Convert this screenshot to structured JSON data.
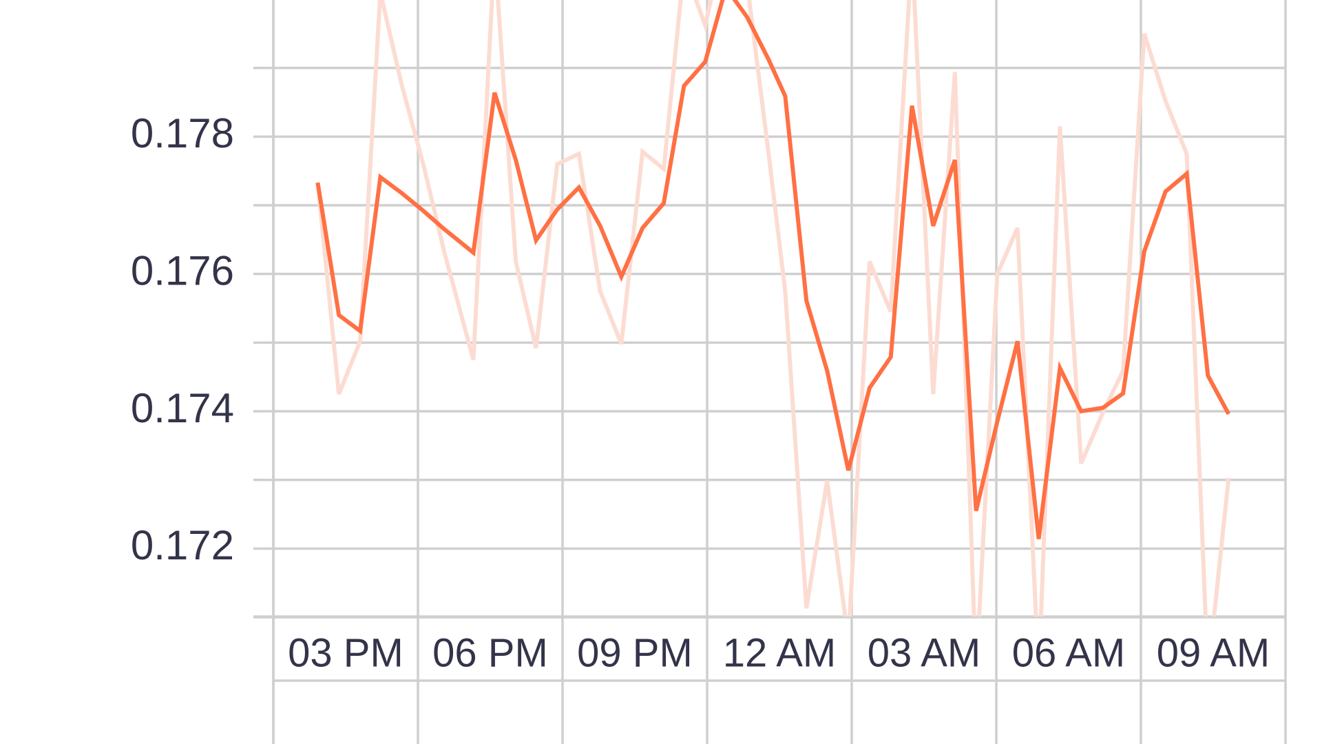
{
  "chart_data": {
    "type": "line",
    "x": [
      15.92,
      16.36,
      16.8,
      17.22,
      17.66,
      18.11,
      18.55,
      19.15,
      19.59,
      20.03,
      20.45,
      20.89,
      21.34,
      21.78,
      22.22,
      22.66,
      23.1,
      23.52,
      23.96,
      24.39,
      24.83,
      25.27,
      25.62,
      26.06,
      26.49,
      26.93,
      27.37,
      27.81,
      28.25,
      28.69,
      29.14,
      29.58,
      30.02,
      30.44,
      30.88,
      31.32,
      31.76,
      32.21,
      32.63,
      33.07,
      33.51,
      33.95,
      34.39,
      34.82
    ],
    "series": [
      {
        "color": "#fcdcd2",
        "values": [
          0.17733,
          0.17425,
          0.17502,
          0.1801,
          0.17876,
          0.1776,
          0.17631,
          0.17475,
          0.18072,
          0.17618,
          0.17492,
          0.1776,
          0.17775,
          0.17575,
          0.17498,
          0.17778,
          0.17753,
          0.18048,
          0.17962,
          0.18097,
          0.18023,
          0.17778,
          0.17575,
          0.17113,
          0.17299,
          0.17066,
          0.17618,
          0.17545,
          0.18072,
          0.17425,
          0.17894,
          0.17017,
          0.176,
          0.17667,
          0.17017,
          0.17815,
          0.17324,
          0.17398,
          0.17459,
          0.1795,
          0.17852,
          0.17775,
          0.17017,
          0.17303
        ]
      },
      {
        "color": "#ff7043",
        "values": [
          0.17733,
          0.1754,
          0.17517,
          0.17741,
          0.17718,
          0.17692,
          0.17665,
          0.17631,
          0.17864,
          0.17766,
          0.17649,
          0.17694,
          0.17726,
          0.1767,
          0.17596,
          0.17667,
          0.17703,
          0.17874,
          0.17909,
          0.18017,
          0.17974,
          0.17913,
          0.17859,
          0.17561,
          0.17459,
          0.17314,
          0.17434,
          0.17479,
          0.17845,
          0.1767,
          0.17766,
          0.17255,
          0.17385,
          0.17502,
          0.17214,
          0.17463,
          0.174,
          0.17405,
          0.17426,
          0.17633,
          0.1772,
          0.17746,
          0.17452,
          0.17396
        ]
      }
    ],
    "xlim": [
      15,
      36
    ],
    "xticks": [
      {
        "value": 15,
        "label": "03 PM"
      },
      {
        "value": 18,
        "label": "06 PM"
      },
      {
        "value": 21,
        "label": "09 PM"
      },
      {
        "value": 24,
        "label": "12 AM"
      },
      {
        "value": 27,
        "label": "03 AM"
      },
      {
        "value": 30,
        "label": "06 AM"
      },
      {
        "value": 33,
        "label": "09 AM"
      }
    ],
    "ylim": [
      0.17101,
      0.17999
    ],
    "yticks": [
      0.172,
      0.174,
      0.176,
      0.178
    ],
    "y_minor_ticks": [
      0.171,
      0.173,
      0.175,
      0.177,
      0.179
    ],
    "grid": true
  }
}
